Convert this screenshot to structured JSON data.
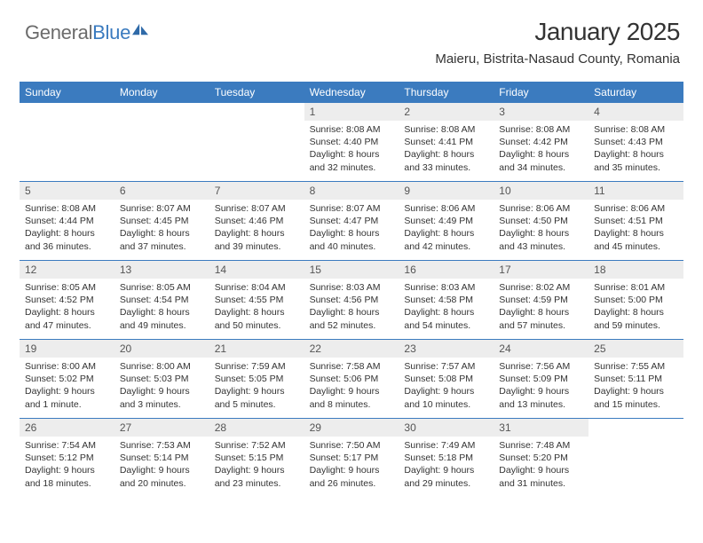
{
  "logo": {
    "text_general": "General",
    "text_blue": "Blue"
  },
  "header": {
    "title": "January 2025",
    "subtitle": "Maieru, Bistrita-Nasaud County, Romania"
  },
  "colors": {
    "header_bar": "#3b7bbf",
    "day_num_bg": "#ededed",
    "row_border": "#3b7bbf",
    "text": "#333333",
    "logo_gray": "#6b6b6b",
    "logo_blue": "#3b7bbf"
  },
  "days_of_week": [
    "Sunday",
    "Monday",
    "Tuesday",
    "Wednesday",
    "Thursday",
    "Friday",
    "Saturday"
  ],
  "weeks": [
    [
      null,
      null,
      null,
      {
        "n": "1",
        "sr": "8:08 AM",
        "ss": "4:40 PM",
        "dl": "8 hours and 32 minutes."
      },
      {
        "n": "2",
        "sr": "8:08 AM",
        "ss": "4:41 PM",
        "dl": "8 hours and 33 minutes."
      },
      {
        "n": "3",
        "sr": "8:08 AM",
        "ss": "4:42 PM",
        "dl": "8 hours and 34 minutes."
      },
      {
        "n": "4",
        "sr": "8:08 AM",
        "ss": "4:43 PM",
        "dl": "8 hours and 35 minutes."
      }
    ],
    [
      {
        "n": "5",
        "sr": "8:08 AM",
        "ss": "4:44 PM",
        "dl": "8 hours and 36 minutes."
      },
      {
        "n": "6",
        "sr": "8:07 AM",
        "ss": "4:45 PM",
        "dl": "8 hours and 37 minutes."
      },
      {
        "n": "7",
        "sr": "8:07 AM",
        "ss": "4:46 PM",
        "dl": "8 hours and 39 minutes."
      },
      {
        "n": "8",
        "sr": "8:07 AM",
        "ss": "4:47 PM",
        "dl": "8 hours and 40 minutes."
      },
      {
        "n": "9",
        "sr": "8:06 AM",
        "ss": "4:49 PM",
        "dl": "8 hours and 42 minutes."
      },
      {
        "n": "10",
        "sr": "8:06 AM",
        "ss": "4:50 PM",
        "dl": "8 hours and 43 minutes."
      },
      {
        "n": "11",
        "sr": "8:06 AM",
        "ss": "4:51 PM",
        "dl": "8 hours and 45 minutes."
      }
    ],
    [
      {
        "n": "12",
        "sr": "8:05 AM",
        "ss": "4:52 PM",
        "dl": "8 hours and 47 minutes."
      },
      {
        "n": "13",
        "sr": "8:05 AM",
        "ss": "4:54 PM",
        "dl": "8 hours and 49 minutes."
      },
      {
        "n": "14",
        "sr": "8:04 AM",
        "ss": "4:55 PM",
        "dl": "8 hours and 50 minutes."
      },
      {
        "n": "15",
        "sr": "8:03 AM",
        "ss": "4:56 PM",
        "dl": "8 hours and 52 minutes."
      },
      {
        "n": "16",
        "sr": "8:03 AM",
        "ss": "4:58 PM",
        "dl": "8 hours and 54 minutes."
      },
      {
        "n": "17",
        "sr": "8:02 AM",
        "ss": "4:59 PM",
        "dl": "8 hours and 57 minutes."
      },
      {
        "n": "18",
        "sr": "8:01 AM",
        "ss": "5:00 PM",
        "dl": "8 hours and 59 minutes."
      }
    ],
    [
      {
        "n": "19",
        "sr": "8:00 AM",
        "ss": "5:02 PM",
        "dl": "9 hours and 1 minute."
      },
      {
        "n": "20",
        "sr": "8:00 AM",
        "ss": "5:03 PM",
        "dl": "9 hours and 3 minutes."
      },
      {
        "n": "21",
        "sr": "7:59 AM",
        "ss": "5:05 PM",
        "dl": "9 hours and 5 minutes."
      },
      {
        "n": "22",
        "sr": "7:58 AM",
        "ss": "5:06 PM",
        "dl": "9 hours and 8 minutes."
      },
      {
        "n": "23",
        "sr": "7:57 AM",
        "ss": "5:08 PM",
        "dl": "9 hours and 10 minutes."
      },
      {
        "n": "24",
        "sr": "7:56 AM",
        "ss": "5:09 PM",
        "dl": "9 hours and 13 minutes."
      },
      {
        "n": "25",
        "sr": "7:55 AM",
        "ss": "5:11 PM",
        "dl": "9 hours and 15 minutes."
      }
    ],
    [
      {
        "n": "26",
        "sr": "7:54 AM",
        "ss": "5:12 PM",
        "dl": "9 hours and 18 minutes."
      },
      {
        "n": "27",
        "sr": "7:53 AM",
        "ss": "5:14 PM",
        "dl": "9 hours and 20 minutes."
      },
      {
        "n": "28",
        "sr": "7:52 AM",
        "ss": "5:15 PM",
        "dl": "9 hours and 23 minutes."
      },
      {
        "n": "29",
        "sr": "7:50 AM",
        "ss": "5:17 PM",
        "dl": "9 hours and 26 minutes."
      },
      {
        "n": "30",
        "sr": "7:49 AM",
        "ss": "5:18 PM",
        "dl": "9 hours and 29 minutes."
      },
      {
        "n": "31",
        "sr": "7:48 AM",
        "ss": "5:20 PM",
        "dl": "9 hours and 31 minutes."
      },
      null
    ]
  ],
  "labels": {
    "sunrise": "Sunrise:",
    "sunset": "Sunset:",
    "daylight": "Daylight:"
  }
}
